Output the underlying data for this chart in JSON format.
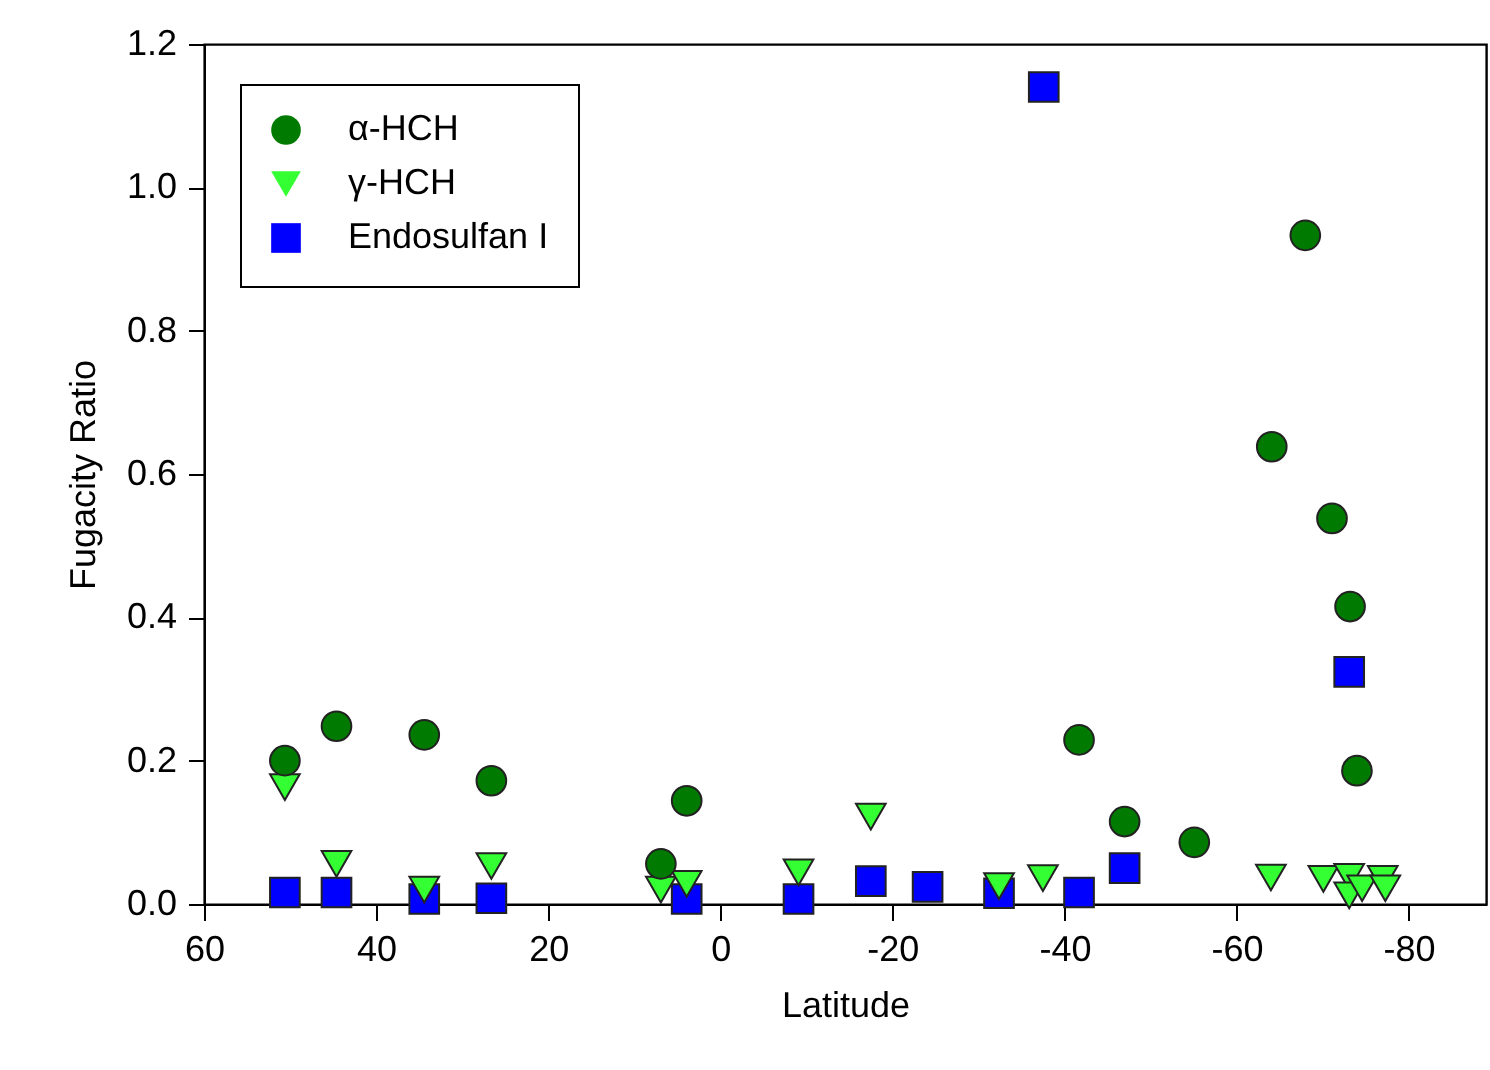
{
  "chart_data": {
    "type": "scatter",
    "xlabel": "Latitude",
    "ylabel": "Fugacity Ratio",
    "xlim": [
      60,
      -89
    ],
    "xticks": [
      60,
      40,
      20,
      0,
      -20,
      -40,
      -60,
      -80
    ],
    "ylim": [
      0,
      1.2
    ],
    "yticks": [
      {
        "value": 0,
        "label": "0.0"
      },
      {
        "value": 0.2,
        "label": "0.2"
      },
      {
        "value": 0.4,
        "label": "0.4"
      },
      {
        "value": 0.6,
        "label": "0.6"
      },
      {
        "value": 0.8,
        "label": "0.8"
      },
      {
        "value": 1.0,
        "label": "1.0"
      },
      {
        "value": 1.2,
        "label": "1.2"
      }
    ],
    "grid": false,
    "legend": "top left",
    "series": [
      {
        "name": "α-HCH",
        "color": "#007a00",
        "marker": "circle",
        "x": [
          50.6,
          44.6,
          34.4,
          26.6,
          6.9,
          3.9,
          -41.7,
          -47.0,
          -55.1,
          -64.1,
          -68.0,
          -71.1,
          -73.2,
          -74.0
        ],
        "values": [
          0.2,
          0.248,
          0.236,
          0.172,
          0.056,
          0.144,
          0.229,
          0.115,
          0.086,
          0.638,
          0.933,
          0.538,
          0.415,
          0.186
        ]
      },
      {
        "name": "γ-HCH",
        "color": "#33ff33",
        "marker": "triangle",
        "x": [
          50.6,
          44.6,
          34.4,
          26.6,
          6.9,
          3.9,
          -9.1,
          -17.5,
          -32.4,
          -37.5,
          -64.0,
          -70.1,
          -73.1,
          -73.1,
          -74.6,
          -77.0,
          -77.3
        ],
        "values": [
          0.163,
          0.056,
          0.02,
          0.053,
          0.02,
          0.028,
          0.044,
          0.122,
          0.025,
          0.036,
          0.037,
          0.035,
          0.038,
          0.012,
          0.022,
          0.035,
          0.022
        ]
      },
      {
        "name": "Endosulfan I",
        "color": "#0000ff",
        "marker": "square",
        "x": [
          50.6,
          44.6,
          34.4,
          26.6,
          3.9,
          -9.1,
          -17.5,
          -24.1,
          -32.4,
          -37.6,
          -41.7,
          -47.0,
          -73.1
        ],
        "values": [
          0.016,
          0.016,
          0.007,
          0.008,
          0.007,
          0.007,
          0.032,
          0.024,
          0.015,
          1.14,
          0.016,
          0.05,
          0.324
        ]
      }
    ]
  }
}
